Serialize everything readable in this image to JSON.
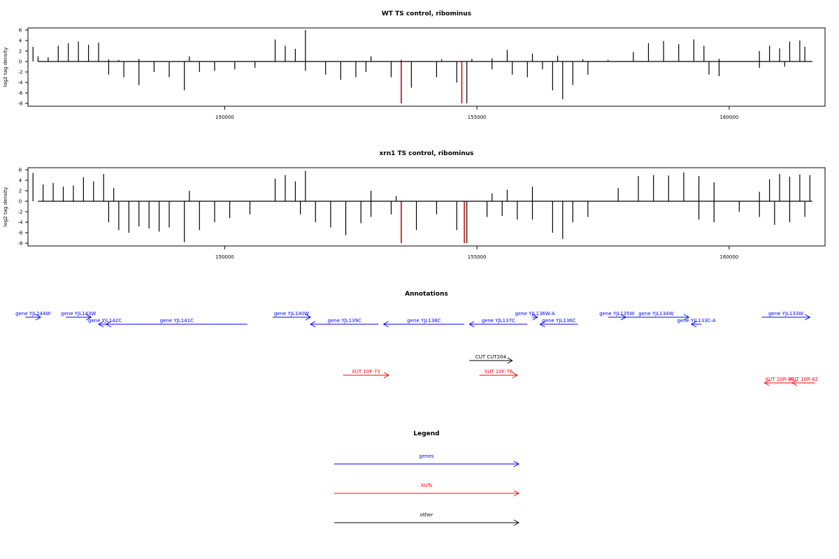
{
  "chart_data": [
    {
      "type": "bar",
      "title": "WT TS control, ribominus",
      "ylabel": "log2 tag density",
      "xlabel": "",
      "xlim": [
        146100,
        161900
      ],
      "ylim": [
        -8,
        6
      ],
      "x_ticks": [
        150000,
        155000,
        160000
      ],
      "y_ticks": [
        -8,
        -6,
        -4,
        -2,
        0,
        2,
        4,
        6
      ],
      "grid": false,
      "series": [
        {
          "strand": "+",
          "x": [
            146200,
            146300,
            146500,
            146700,
            146900,
            147100,
            147300,
            147500,
            147700,
            147900,
            148300,
            149300,
            151000,
            151200,
            151400,
            151600,
            152900,
            153500,
            154300,
            154900,
            155300,
            155600,
            156100,
            156600,
            157100,
            157600,
            158100,
            158400,
            158700,
            159000,
            159300,
            159500,
            159800,
            160600,
            160800,
            161000,
            161200,
            161400,
            161500
          ],
          "y": [
            2.8,
            1.0,
            0.8,
            3.0,
            3.5,
            3.8,
            3.2,
            3.6,
            0.4,
            0.3,
            0.5,
            1.0,
            4.2,
            3.0,
            2.4,
            6.0,
            1.0,
            0.3,
            0.4,
            0.5,
            0.6,
            2.2,
            1.5,
            1.1,
            0.4,
            0.3,
            1.8,
            3.5,
            3.9,
            3.3,
            4.2,
            3.0,
            0.5,
            2.0,
            3.0,
            2.5,
            3.8,
            4.0,
            2.8
          ]
        },
        {
          "strand": "-",
          "x": [
            147700,
            148000,
            148300,
            148600,
            148900,
            149200,
            149500,
            149800,
            150200,
            150600,
            151600,
            152000,
            152300,
            152600,
            152800,
            153300,
            153500,
            153700,
            154200,
            154600,
            154800,
            155300,
            155700,
            156000,
            156300,
            156500,
            156700,
            156900,
            157200,
            159600,
            159800,
            160600,
            161100
          ],
          "y": [
            -2.5,
            -3.0,
            -4.5,
            -2.0,
            -3.0,
            -5.5,
            -2.0,
            -1.8,
            -1.5,
            -1.2,
            -1.8,
            -2.5,
            -3.5,
            -3.0,
            -2.0,
            -3.0,
            -8.0,
            -5.0,
            -3.0,
            -4.0,
            -8.0,
            -1.5,
            -2.5,
            -3.0,
            -1.5,
            -5.5,
            -7.2,
            -4.5,
            -2.5,
            -2.5,
            -2.8,
            -1.2,
            -1.0
          ]
        }
      ],
      "highlights": [
        {
          "x": 153500,
          "y": -8,
          "color": "#cc0000"
        },
        {
          "x": 154700,
          "y": -8,
          "color": "#cc0000"
        }
      ]
    },
    {
      "type": "bar",
      "title": "xrn1 TS control, ribominus",
      "ylabel": "log2 tag density",
      "xlabel": "",
      "xlim": [
        146100,
        161900
      ],
      "ylim": [
        -8,
        6
      ],
      "x_ticks": [
        150000,
        155000,
        160000
      ],
      "y_ticks": [
        -8,
        -6,
        -4,
        -2,
        0,
        2,
        4,
        6
      ],
      "grid": false,
      "series": [
        {
          "strand": "+",
          "x": [
            146200,
            146400,
            146600,
            146800,
            147000,
            147200,
            147400,
            147600,
            147800,
            149300,
            151000,
            151200,
            151400,
            151600,
            152900,
            153400,
            155300,
            155600,
            156100,
            157800,
            158200,
            158500,
            158800,
            159100,
            159400,
            159700,
            160600,
            160800,
            161000,
            161200,
            161400,
            161600
          ],
          "y": [
            5.4,
            3.2,
            3.5,
            2.8,
            3.0,
            4.6,
            3.8,
            5.2,
            2.5,
            2.0,
            4.3,
            5.0,
            3.8,
            5.8,
            2.0,
            1.0,
            1.5,
            2.2,
            2.8,
            2.5,
            4.8,
            5.0,
            4.9,
            5.5,
            4.8,
            3.6,
            1.8,
            4.2,
            5.2,
            4.7,
            5.1,
            5.0
          ]
        },
        {
          "strand": "-",
          "x": [
            147700,
            147900,
            148100,
            148300,
            148500,
            148700,
            148900,
            149200,
            149500,
            149800,
            150100,
            150500,
            151500,
            151800,
            152100,
            152400,
            152700,
            152900,
            153300,
            153500,
            153800,
            154200,
            154600,
            154800,
            155200,
            155500,
            155800,
            156100,
            156500,
            156700,
            156900,
            157200,
            159400,
            159700,
            160200,
            160600,
            160900,
            161200,
            161500
          ],
          "y": [
            -4.0,
            -5.5,
            -6.0,
            -4.8,
            -5.2,
            -5.8,
            -5.0,
            -7.8,
            -5.5,
            -4.0,
            -3.2,
            -2.5,
            -2.5,
            -4.0,
            -5.0,
            -6.5,
            -4.2,
            -3.0,
            -2.5,
            -8.0,
            -5.5,
            -2.5,
            -5.5,
            -8.0,
            -3.0,
            -2.8,
            -3.5,
            -3.5,
            -6.0,
            -7.2,
            -4.0,
            -3.0,
            -3.5,
            -4.0,
            -2.0,
            -3.0,
            -4.5,
            -4.0,
            -3.0
          ]
        }
      ],
      "highlights": [
        {
          "x": 153500,
          "y": -8,
          "color": "#cc0000"
        },
        {
          "x": 154750,
          "y": -8,
          "color": "#cc0000"
        }
      ]
    }
  ],
  "annotations_panel": {
    "title": "Annotations",
    "items": [
      {
        "label": "gene YJL144W",
        "start": 146050,
        "end": 146350,
        "strand": "+",
        "row": 0,
        "color": "#0000ff"
      },
      {
        "label": "gene YJL143W",
        "start": 146850,
        "end": 147350,
        "strand": "+",
        "row": 0,
        "color": "#0000ff"
      },
      {
        "label": "gene YJL142C",
        "start": 147500,
        "end": 147750,
        "strand": "-",
        "row": 1,
        "color": "#0000ff"
      },
      {
        "label": "gene YJL141C",
        "start": 147650,
        "end": 150450,
        "strand": "-",
        "row": 1,
        "color": "#0000ff"
      },
      {
        "label": "gene YJL140W",
        "start": 150950,
        "end": 151700,
        "strand": "+",
        "row": 0,
        "color": "#0000ff"
      },
      {
        "label": "gene YJL139C",
        "start": 151700,
        "end": 153050,
        "strand": "-",
        "row": 1,
        "color": "#0000ff"
      },
      {
        "label": "gene YJL138C",
        "start": 153150,
        "end": 154750,
        "strand": "-",
        "row": 1,
        "color": "#0000ff"
      },
      {
        "label": "gene YJL137C",
        "start": 154850,
        "end": 156000,
        "strand": "-",
        "row": 1,
        "color": "#0000ff"
      },
      {
        "label": "gene YJL136W-A",
        "start": 156100,
        "end": 156200,
        "strand": "+",
        "row": 0,
        "color": "#0000ff"
      },
      {
        "label": "gene YJL136C",
        "start": 156250,
        "end": 157000,
        "strand": "-",
        "row": 1,
        "color": "#0000ff"
      },
      {
        "label": "gene YJL135W",
        "start": 157600,
        "end": 157950,
        "strand": "+",
        "row": 0,
        "color": "#0000ff"
      },
      {
        "label": "gene YJL134W",
        "start": 157900,
        "end": 159200,
        "strand": "+",
        "row": 0,
        "color": "#0000ff"
      },
      {
        "label": "gene YJL133C-A",
        "start": 159250,
        "end": 159450,
        "strand": "-",
        "row": 1,
        "color": "#0000ff"
      },
      {
        "label": "gene YJL133W",
        "start": 160650,
        "end": 161600,
        "strand": "+",
        "row": 0,
        "color": "#0000ff"
      },
      {
        "label": "CUT CUT204",
        "start": 154850,
        "end": 155700,
        "strand": "+",
        "row": 3,
        "color": "#000000"
      },
      {
        "label": "XUT 10F-73",
        "start": 152350,
        "end": 153250,
        "strand": "+",
        "row": 4,
        "color": "#ff0000"
      },
      {
        "label": "XUT 10F-76",
        "start": 155050,
        "end": 155800,
        "strand": "+",
        "row": 4,
        "color": "#ff0000"
      },
      {
        "label": "XUT 10R-89",
        "start": 160700,
        "end": 161300,
        "strand": "-",
        "row": 5,
        "color": "#ff0000"
      },
      {
        "label": "XUT 10R-82",
        "start": 161250,
        "end": 161700,
        "strand": "-",
        "row": 5,
        "color": "#ff0000"
      }
    ]
  },
  "legend_panel": {
    "title": "Legend",
    "entries": [
      {
        "label": "genes",
        "color": "#0000ff"
      },
      {
        "label": "XUTs",
        "color": "#ff0000"
      },
      {
        "label": "other",
        "color": "#000000"
      }
    ]
  }
}
